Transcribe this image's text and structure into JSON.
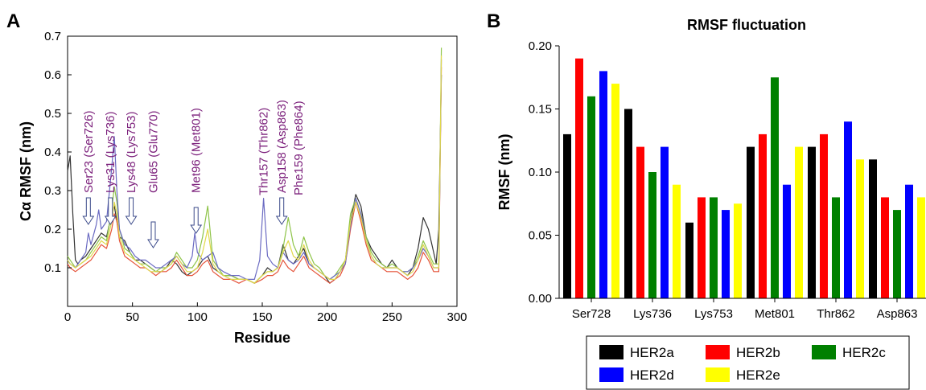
{
  "panels": {
    "a_letter": "A",
    "b_letter": "B"
  },
  "chart_data": [
    {
      "id": "A",
      "type": "line",
      "title": "",
      "xlabel": "Residue",
      "ylabel": "Cα RMSF (nm)",
      "xlim": [
        0,
        300
      ],
      "ylim": [
        0.0,
        0.7
      ],
      "x_ticks": [
        "0",
        "50",
        "100",
        "150",
        "200",
        "250",
        "300"
      ],
      "y_ticks": [
        "0.1",
        "0.2",
        "0.3",
        "0.4",
        "0.5",
        "0.6",
        "0.7"
      ],
      "grid": false,
      "annotation_color": "#7b1f7b",
      "annotations": [
        {
          "text": "Ser23 (Ser726)",
          "x": 16,
          "arrow": true
        },
        {
          "text": "Lys31 (Lys736)",
          "x": 33,
          "arrow": true
        },
        {
          "text": "Lys48 (Lys753)",
          "x": 49,
          "arrow": true
        },
        {
          "text": "Glu65 (Glu770)",
          "x": 66,
          "arrow": true
        },
        {
          "text": "Met96 (Met801)",
          "x": 99,
          "arrow": true
        },
        {
          "text": "Thr157 (Thr862)",
          "x": 151,
          "arrow": false
        },
        {
          "text": "Asp158 (Asp863)",
          "x": 165,
          "arrow": true
        },
        {
          "text": "Phe159 (Phe864)",
          "x": 178,
          "arrow": false
        }
      ],
      "series": [
        {
          "color": "#333333",
          "x": [
            0,
            2,
            4,
            6,
            8,
            10,
            14,
            18,
            22,
            26,
            30,
            34,
            36,
            38,
            40,
            44,
            48,
            52,
            56,
            60,
            64,
            68,
            72,
            76,
            80,
            84,
            88,
            92,
            96,
            100,
            104,
            108,
            112,
            116,
            120,
            126,
            132,
            138,
            144,
            150,
            154,
            158,
            162,
            166,
            170,
            174,
            178,
            182,
            186,
            190,
            194,
            198,
            202,
            206,
            210,
            214,
            218,
            222,
            226,
            230,
            234,
            238,
            242,
            246,
            250,
            254,
            258,
            262,
            266,
            270,
            274,
            278,
            282,
            284,
            286,
            288
          ],
          "values": [
            0.35,
            0.39,
            0.24,
            0.12,
            0.11,
            0.12,
            0.13,
            0.15,
            0.17,
            0.19,
            0.18,
            0.24,
            0.26,
            0.22,
            0.18,
            0.17,
            0.14,
            0.12,
            0.12,
            0.11,
            0.1,
            0.09,
            0.09,
            0.1,
            0.12,
            0.11,
            0.09,
            0.08,
            0.09,
            0.1,
            0.12,
            0.13,
            0.1,
            0.09,
            0.08,
            0.08,
            0.07,
            0.07,
            0.06,
            0.08,
            0.1,
            0.09,
            0.1,
            0.16,
            0.12,
            0.11,
            0.13,
            0.15,
            0.11,
            0.1,
            0.09,
            0.08,
            0.06,
            0.07,
            0.09,
            0.12,
            0.22,
            0.29,
            0.26,
            0.18,
            0.15,
            0.13,
            0.11,
            0.1,
            0.12,
            0.1,
            0.09,
            0.08,
            0.1,
            0.15,
            0.23,
            0.2,
            0.14,
            0.11,
            0.2,
            0.6
          ]
        },
        {
          "color": "#e5533a",
          "x": [
            0,
            2,
            6,
            10,
            14,
            18,
            22,
            26,
            30,
            34,
            36,
            38,
            40,
            44,
            48,
            52,
            56,
            60,
            64,
            68,
            72,
            76,
            80,
            84,
            88,
            92,
            96,
            100,
            104,
            108,
            112,
            116,
            120,
            126,
            132,
            138,
            144,
            150,
            154,
            158,
            162,
            166,
            170,
            174,
            178,
            182,
            186,
            190,
            194,
            198,
            202,
            206,
            210,
            214,
            218,
            222,
            226,
            230,
            234,
            238,
            242,
            246,
            250,
            254,
            258,
            262,
            266,
            270,
            274,
            278,
            282,
            286,
            288
          ],
          "values": [
            0.11,
            0.1,
            0.09,
            0.1,
            0.11,
            0.12,
            0.14,
            0.16,
            0.15,
            0.2,
            0.24,
            0.22,
            0.17,
            0.13,
            0.12,
            0.11,
            0.1,
            0.1,
            0.09,
            0.08,
            0.09,
            0.09,
            0.1,
            0.12,
            0.1,
            0.08,
            0.08,
            0.09,
            0.11,
            0.12,
            0.09,
            0.08,
            0.07,
            0.07,
            0.06,
            0.07,
            0.06,
            0.07,
            0.08,
            0.08,
            0.09,
            0.12,
            0.1,
            0.09,
            0.11,
            0.13,
            0.1,
            0.09,
            0.08,
            0.07,
            0.06,
            0.07,
            0.08,
            0.11,
            0.2,
            0.27,
            0.22,
            0.16,
            0.12,
            0.11,
            0.1,
            0.09,
            0.09,
            0.09,
            0.08,
            0.07,
            0.08,
            0.1,
            0.14,
            0.12,
            0.09,
            0.09,
            0.62
          ]
        },
        {
          "color": "#8ec448",
          "x": [
            0,
            2,
            6,
            10,
            14,
            18,
            22,
            26,
            30,
            34,
            36,
            38,
            40,
            44,
            48,
            52,
            56,
            60,
            64,
            68,
            72,
            76,
            80,
            84,
            88,
            92,
            96,
            100,
            104,
            108,
            112,
            116,
            120,
            126,
            132,
            138,
            144,
            150,
            154,
            158,
            162,
            166,
            170,
            174,
            178,
            182,
            186,
            190,
            194,
            198,
            202,
            206,
            210,
            214,
            218,
            222,
            226,
            230,
            234,
            238,
            242,
            246,
            250,
            254,
            258,
            262,
            266,
            270,
            274,
            278,
            282,
            286,
            288
          ],
          "values": [
            0.13,
            0.12,
            0.1,
            0.11,
            0.12,
            0.14,
            0.16,
            0.18,
            0.17,
            0.25,
            0.31,
            0.27,
            0.2,
            0.15,
            0.14,
            0.12,
            0.11,
            0.11,
            0.1,
            0.09,
            0.1,
            0.1,
            0.11,
            0.14,
            0.12,
            0.1,
            0.1,
            0.12,
            0.18,
            0.26,
            0.12,
            0.1,
            0.08,
            0.08,
            0.07,
            0.07,
            0.06,
            0.08,
            0.09,
            0.09,
            0.1,
            0.15,
            0.23,
            0.16,
            0.13,
            0.18,
            0.14,
            0.11,
            0.1,
            0.08,
            0.07,
            0.08,
            0.1,
            0.12,
            0.24,
            0.28,
            0.24,
            0.18,
            0.14,
            0.12,
            0.11,
            0.1,
            0.11,
            0.1,
            0.09,
            0.09,
            0.1,
            0.13,
            0.17,
            0.14,
            0.11,
            0.11,
            0.67
          ]
        },
        {
          "color": "#6a6ac2",
          "x": [
            0,
            2,
            6,
            10,
            14,
            16,
            18,
            22,
            24,
            26,
            30,
            34,
            36,
            38,
            40,
            44,
            48,
            52,
            56,
            60,
            64,
            68,
            72,
            76,
            80,
            84,
            88,
            92,
            96,
            98,
            100,
            104,
            108,
            112,
            116,
            120,
            126,
            132,
            138,
            144,
            148,
            151,
            154,
            158,
            162,
            166,
            170,
            174,
            178,
            182,
            186,
            190,
            194,
            198,
            202,
            206,
            210,
            214,
            218,
            222,
            226,
            230,
            234,
            238,
            242,
            246,
            250,
            254,
            258,
            262,
            266,
            270,
            274,
            278,
            282,
            286,
            288
          ],
          "values": [
            0.12,
            0.11,
            0.1,
            0.12,
            0.14,
            0.19,
            0.16,
            0.21,
            0.25,
            0.2,
            0.22,
            0.36,
            0.44,
            0.3,
            0.2,
            0.16,
            0.15,
            0.13,
            0.12,
            0.12,
            0.11,
            0.1,
            0.1,
            0.11,
            0.12,
            0.13,
            0.11,
            0.1,
            0.13,
            0.19,
            0.14,
            0.12,
            0.13,
            0.14,
            0.1,
            0.09,
            0.08,
            0.08,
            0.07,
            0.07,
            0.12,
            0.28,
            0.13,
            0.11,
            0.1,
            0.14,
            0.12,
            0.11,
            0.12,
            0.14,
            0.11,
            0.1,
            0.09,
            0.08,
            0.07,
            0.08,
            0.09,
            0.11,
            0.21,
            0.28,
            0.24,
            0.17,
            0.13,
            0.11,
            0.1,
            0.1,
            0.1,
            0.1,
            0.09,
            0.09,
            0.1,
            0.12,
            0.15,
            0.13,
            0.1,
            0.1,
            0.64
          ]
        },
        {
          "color": "#e0d84a",
          "x": [
            0,
            2,
            6,
            10,
            14,
            18,
            22,
            26,
            30,
            34,
            36,
            38,
            40,
            44,
            48,
            52,
            56,
            60,
            64,
            68,
            72,
            76,
            80,
            84,
            88,
            92,
            96,
            100,
            104,
            108,
            112,
            116,
            120,
            126,
            132,
            138,
            144,
            150,
            154,
            158,
            162,
            166,
            170,
            174,
            178,
            182,
            186,
            190,
            194,
            198,
            202,
            206,
            210,
            214,
            218,
            222,
            226,
            230,
            234,
            238,
            242,
            246,
            250,
            254,
            258,
            262,
            266,
            270,
            274,
            278,
            282,
            286,
            288
          ],
          "values": [
            0.12,
            0.11,
            0.1,
            0.11,
            0.12,
            0.13,
            0.15,
            0.17,
            0.16,
            0.22,
            0.27,
            0.24,
            0.18,
            0.14,
            0.13,
            0.12,
            0.11,
            0.1,
            0.09,
            0.09,
            0.09,
            0.1,
            0.11,
            0.13,
            0.11,
            0.09,
            0.09,
            0.1,
            0.14,
            0.2,
            0.11,
            0.09,
            0.08,
            0.07,
            0.07,
            0.07,
            0.06,
            0.08,
            0.09,
            0.09,
            0.1,
            0.14,
            0.17,
            0.13,
            0.12,
            0.16,
            0.12,
            0.1,
            0.09,
            0.08,
            0.07,
            0.07,
            0.09,
            0.12,
            0.22,
            0.27,
            0.23,
            0.17,
            0.13,
            0.11,
            0.1,
            0.1,
            0.1,
            0.1,
            0.09,
            0.08,
            0.09,
            0.12,
            0.16,
            0.13,
            0.1,
            0.1,
            0.65
          ]
        }
      ]
    },
    {
      "id": "B",
      "type": "bar",
      "title": "RMSF fluctuation",
      "xlabel": "",
      "ylabel": "RMSF (nm)",
      "ylim": [
        0,
        0.2
      ],
      "y_ticks": [
        "0.00",
        "0.05",
        "0.10",
        "0.15",
        "0.20"
      ],
      "grid": false,
      "categories": [
        "Ser728",
        "Lys736",
        "Lys753",
        "Met801",
        "Thr862",
        "Asp863"
      ],
      "series": [
        {
          "name": "HER2a",
          "color": "#000000",
          "values": [
            0.13,
            0.15,
            0.06,
            0.12,
            0.12,
            0.11
          ]
        },
        {
          "name": "HER2b",
          "color": "#ff0000",
          "values": [
            0.19,
            0.12,
            0.08,
            0.13,
            0.13,
            0.08
          ]
        },
        {
          "name": "HER2c",
          "color": "#008000",
          "values": [
            0.16,
            0.1,
            0.08,
            0.175,
            0.08,
            0.07
          ]
        },
        {
          "name": "HER2d",
          "color": "#0000ff",
          "values": [
            0.18,
            0.12,
            0.07,
            0.09,
            0.14,
            0.09
          ]
        },
        {
          "name": "HER2e",
          "color": "#ffff00",
          "values": [
            0.17,
            0.09,
            0.075,
            0.12,
            0.11,
            0.08
          ]
        }
      ],
      "legend": {
        "placement": "bottom"
      }
    }
  ]
}
